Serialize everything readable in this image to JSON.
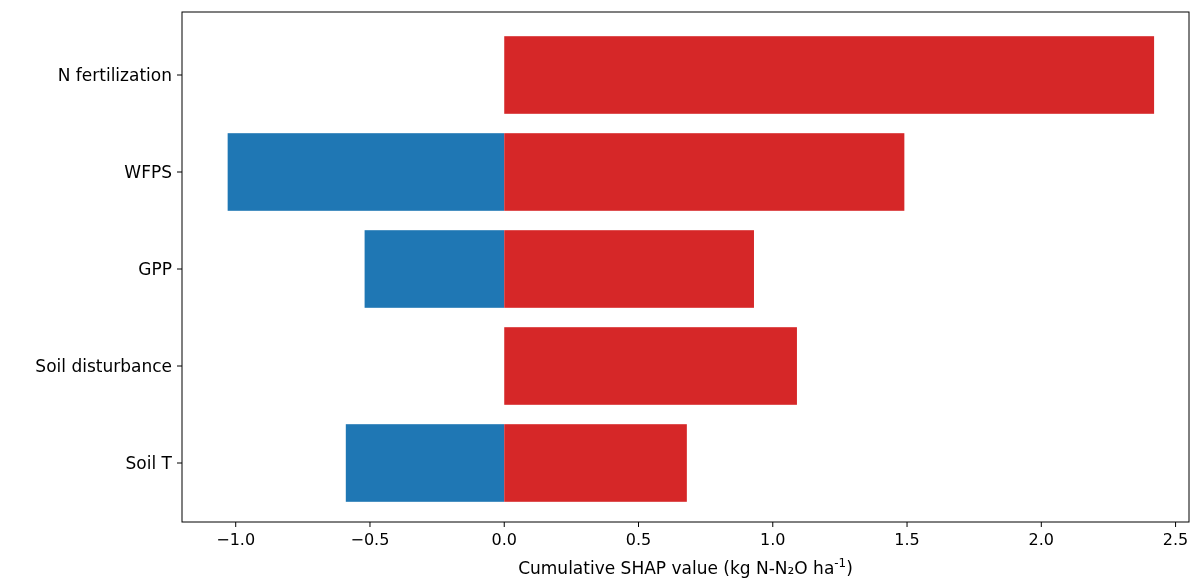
{
  "chart_data": {
    "type": "bar",
    "orientation": "horizontal",
    "stacked": true,
    "xlabel": "Cumulative SHAP value (kg N-N₂O ha$^{-1}$)",
    "categories": [
      "N fertilization",
      "WFPS",
      "GPP",
      "Soil disturbance",
      "Soil T"
    ],
    "series": [
      {
        "color": "#1f77b4",
        "values": [
          null,
          -1.03,
          -0.52,
          null,
          -0.59
        ]
      },
      {
        "color": "#d62728",
        "values": [
          2.42,
          1.49,
          0.93,
          1.09,
          0.68
        ]
      }
    ],
    "xlim": [
      -1.2,
      2.55
    ],
    "xticks": [
      {
        "value": -1,
        "label": "−1.0"
      },
      {
        "value": -0.5,
        "label": "−0.5"
      },
      {
        "value": 0,
        "label": "0.0"
      },
      {
        "value": 0.5,
        "label": "0.5"
      },
      {
        "value": 1,
        "label": "1.0"
      },
      {
        "value": 1.5,
        "label": "1.5"
      },
      {
        "value": 2,
        "label": "2.0"
      },
      {
        "value": 2.5,
        "label": "2.5"
      }
    ],
    "grid": false
  }
}
